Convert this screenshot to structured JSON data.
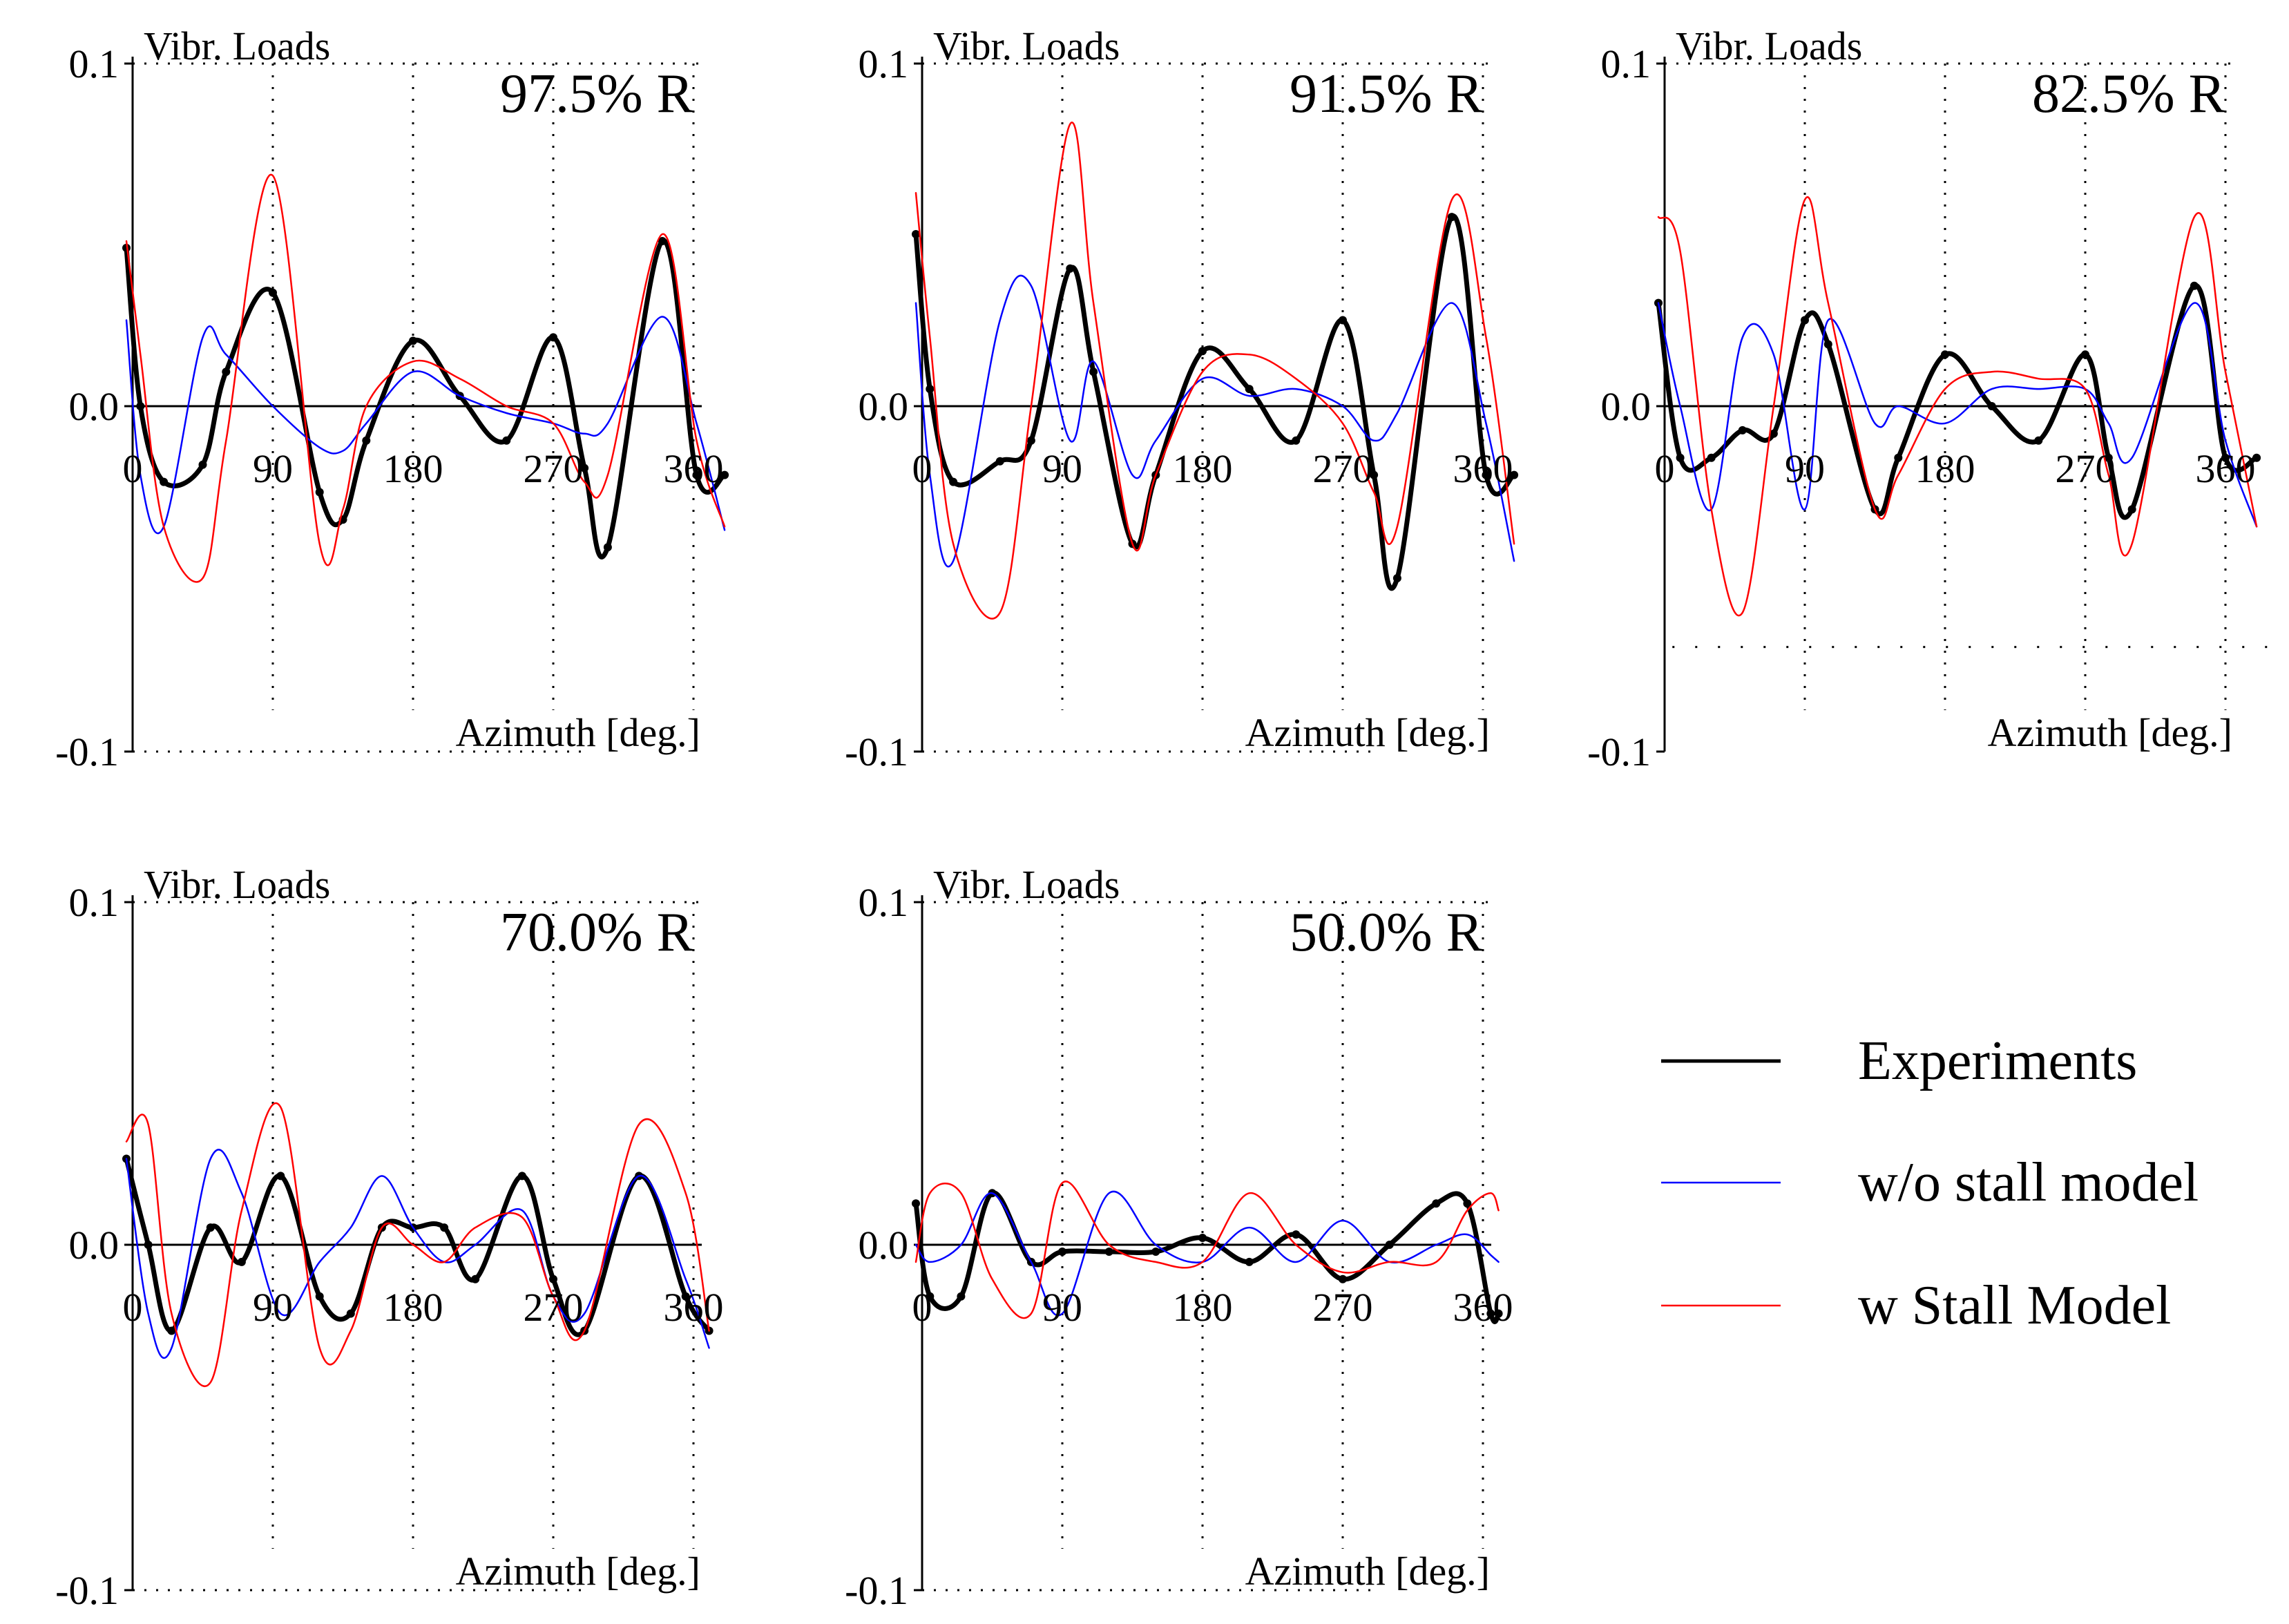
{
  "figure": {
    "legend": [
      {
        "name": "Experiments",
        "color": "#000000"
      },
      {
        "name": "w/o stall model",
        "color": "#0000ff"
      },
      {
        "name": "w Stall Model",
        "color": "#ff0000"
      }
    ]
  },
  "chart_data": [
    {
      "type": "line",
      "title": "97.5% R",
      "ylabel": "Vibr. Loads",
      "xlabel": "Azimuth [deg.]",
      "xlim": [
        0,
        360
      ],
      "ylim": [
        -0.1,
        0.1
      ],
      "xticks": [
        "0",
        "90",
        "180",
        "270",
        "360"
      ],
      "yticks": [
        "0.1",
        "0.0",
        "-0.1"
      ],
      "grid": "dotted vertical at 90, 180, 270, 360; dotted top and bottom borders",
      "x": [
        -4,
        5,
        20,
        45,
        60,
        90,
        120,
        135,
        150,
        180,
        210,
        240,
        270,
        290,
        305,
        340,
        362,
        380
      ],
      "series": [
        {
          "name": "Experiments",
          "values": [
            0.046,
            0.0,
            -0.022,
            -0.017,
            0.01,
            0.033,
            -0.025,
            -0.033,
            -0.01,
            0.019,
            0.003,
            -0.01,
            0.02,
            -0.018,
            -0.041,
            0.048,
            -0.02,
            -0.02
          ]
        },
        {
          "name": "w/o stall model",
          "values": [
            0.025,
            -0.02,
            -0.035,
            0.02,
            0.015,
            0.0,
            -0.012,
            -0.013,
            -0.005,
            0.01,
            0.003,
            -0.002,
            -0.005,
            -0.008,
            -0.005,
            0.026,
            -0.005,
            -0.036
          ]
        },
        {
          "name": "w Stall Model",
          "values": [
            0.048,
            0.015,
            -0.035,
            -0.05,
            -0.01,
            0.067,
            -0.04,
            -0.03,
            0.0,
            0.013,
            0.008,
            0.0,
            -0.005,
            -0.022,
            -0.02,
            0.05,
            -0.01,
            -0.035
          ]
        }
      ]
    },
    {
      "type": "line",
      "title": "91.5% R",
      "ylabel": "Vibr. Loads",
      "xlabel": "Azimuth [deg.]",
      "xlim": [
        0,
        360
      ],
      "ylim": [
        -0.1,
        0.1
      ],
      "xticks": [
        "0",
        "90",
        "180",
        "270",
        "360"
      ],
      "yticks": [
        "0.1",
        "0.0",
        "-0.1"
      ],
      "grid": "dotted vertical at 90, 180, 270, 360; dotted top and bottom borders",
      "x": [
        -4,
        5,
        20,
        50,
        70,
        95,
        110,
        135,
        150,
        180,
        210,
        240,
        270,
        290,
        305,
        340,
        362,
        380
      ],
      "series": [
        {
          "name": "Experiments",
          "values": [
            0.05,
            0.005,
            -0.022,
            -0.016,
            -0.01,
            0.04,
            0.01,
            -0.04,
            -0.02,
            0.016,
            0.005,
            -0.01,
            0.025,
            -0.02,
            -0.05,
            0.055,
            -0.02,
            -0.02
          ]
        },
        {
          "name": "w/o stall model",
          "values": [
            0.03,
            -0.02,
            -0.045,
            0.025,
            0.035,
            -0.01,
            0.013,
            -0.02,
            -0.01,
            0.008,
            0.003,
            0.005,
            0.0,
            -0.01,
            -0.002,
            0.03,
            -0.005,
            -0.045
          ]
        },
        {
          "name": "w Stall Model",
          "values": [
            0.062,
            0.02,
            -0.04,
            -0.06,
            0.0,
            0.082,
            0.03,
            -0.04,
            -0.02,
            0.01,
            0.015,
            0.008,
            -0.005,
            -0.025,
            -0.035,
            0.06,
            0.02,
            -0.04
          ]
        }
      ]
    },
    {
      "type": "line",
      "title": "82.5% R",
      "ylabel": "Vibr. Loads",
      "xlabel": "Azimuth [deg.]",
      "xlim": [
        0,
        360
      ],
      "ylim": [
        -0.1,
        0.1
      ],
      "xticks": [
        "0",
        "90",
        "180",
        "270",
        "360"
      ],
      "yticks": [
        "0.1",
        "0.0",
        "-0.1"
      ],
      "grid": "dotted vertical at 90, 180, 270, 360; dotted top border; dotted horizontal line near -0.07",
      "x": [
        -4,
        10,
        30,
        50,
        70,
        90,
        105,
        135,
        150,
        180,
        210,
        240,
        270,
        285,
        300,
        340,
        360,
        380
      ],
      "series": [
        {
          "name": "Experiments",
          "values": [
            0.03,
            -0.015,
            -0.015,
            -0.007,
            -0.008,
            0.025,
            0.018,
            -0.03,
            -0.015,
            0.015,
            0.0,
            -0.01,
            0.015,
            -0.015,
            -0.03,
            0.035,
            -0.015,
            -0.015
          ]
        },
        {
          "name": "w/o stall model",
          "values": [
            0.03,
            0.0,
            -0.03,
            0.02,
            0.015,
            -0.03,
            0.025,
            -0.005,
            0.0,
            -0.005,
            0.005,
            0.005,
            0.005,
            -0.005,
            -0.015,
            0.03,
            -0.01,
            -0.035
          ]
        },
        {
          "name": "w Stall Model",
          "values": [
            0.055,
            0.045,
            -0.03,
            -0.06,
            0.0,
            0.06,
            0.03,
            -0.03,
            -0.02,
            0.005,
            0.01,
            0.008,
            0.005,
            -0.02,
            -0.04,
            0.055,
            0.01,
            -0.035
          ]
        }
      ]
    },
    {
      "type": "line",
      "title": "70.0% R",
      "ylabel": "Vibr. Loads",
      "xlabel": "Azimuth [deg.]",
      "xlim": [
        0,
        360
      ],
      "ylim": [
        -0.1,
        0.1
      ],
      "xticks": [
        "0",
        "90",
        "180",
        "270",
        "360"
      ],
      "yticks": [
        "0.1",
        "0.0",
        "-0.1"
      ],
      "grid": "dotted vertical at 90, 180, 270, 360; dotted top and bottom borders",
      "x": [
        -4,
        10,
        25,
        50,
        70,
        95,
        120,
        140,
        160,
        180,
        200,
        220,
        250,
        270,
        290,
        325,
        355,
        370
      ],
      "series": [
        {
          "name": "Experiments",
          "values": [
            0.025,
            0.0,
            -0.025,
            0.005,
            -0.005,
            0.02,
            -0.015,
            -0.02,
            0.005,
            0.005,
            0.005,
            -0.01,
            0.02,
            -0.01,
            -0.025,
            0.02,
            -0.015,
            -0.025
          ]
        },
        {
          "name": "w/o stall model",
          "values": [
            0.025,
            -0.02,
            -0.03,
            0.025,
            0.015,
            -0.02,
            -0.005,
            0.005,
            0.02,
            0.005,
            -0.005,
            0.0,
            0.01,
            -0.015,
            -0.02,
            0.02,
            -0.01,
            -0.03
          ]
        },
        {
          "name": "w Stall Model",
          "values": [
            0.03,
            0.035,
            -0.02,
            -0.04,
            0.01,
            0.04,
            -0.03,
            -0.025,
            0.005,
            0.0,
            -0.005,
            0.005,
            0.008,
            -0.015,
            -0.025,
            0.035,
            0.015,
            -0.025
          ]
        }
      ]
    },
    {
      "type": "line",
      "title": "50.0% R",
      "ylabel": "Vibr. Loads",
      "xlabel": "Azimuth [deg.]",
      "xlim": [
        0,
        360
      ],
      "ylim": [
        -0.1,
        0.1
      ],
      "xticks": [
        "0",
        "90",
        "180",
        "270",
        "360"
      ],
      "yticks": [
        "0.1",
        "0.0",
        "-0.1"
      ],
      "grid": "dotted vertical at 90, 180, 270, 360; dotted top and bottom borders",
      "x": [
        -4,
        5,
        25,
        45,
        70,
        90,
        120,
        150,
        180,
        210,
        240,
        270,
        300,
        330,
        350,
        365,
        370
      ],
      "series": [
        {
          "name": "Experiments",
          "values": [
            0.012,
            -0.015,
            -0.015,
            0.015,
            -0.005,
            -0.002,
            -0.002,
            -0.002,
            0.002,
            -0.005,
            0.003,
            -0.01,
            0.0,
            0.012,
            0.012,
            -0.02,
            -0.02
          ]
        },
        {
          "name": "w/o stall model",
          "values": [
            0.0,
            -0.005,
            0.0,
            0.015,
            -0.005,
            -0.02,
            0.015,
            0.0,
            -0.005,
            0.005,
            -0.005,
            0.007,
            -0.005,
            0.0,
            0.003,
            -0.003,
            -0.005
          ]
        },
        {
          "name": "w Stall Model",
          "values": [
            -0.005,
            0.015,
            0.015,
            -0.01,
            -0.02,
            0.018,
            0.0,
            -0.005,
            -0.005,
            0.015,
            0.0,
            -0.008,
            -0.005,
            -0.005,
            0.01,
            0.015,
            0.01
          ]
        }
      ]
    }
  ]
}
